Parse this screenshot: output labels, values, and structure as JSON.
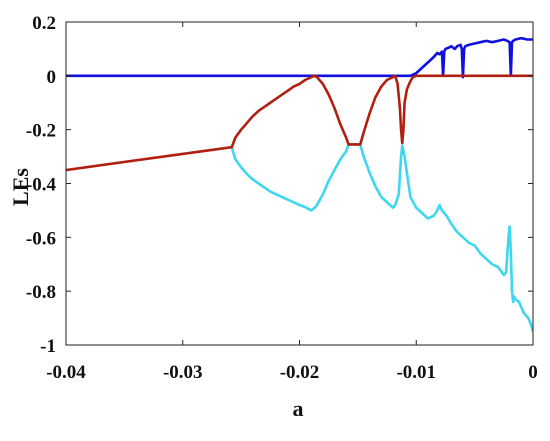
{
  "chart_data": {
    "type": "line",
    "title": "",
    "xlabel": "a",
    "ylabel": "LEs",
    "xlim": [
      -0.04,
      0
    ],
    "ylim": [
      -1,
      0.2
    ],
    "xticks": [
      -0.04,
      -0.03,
      -0.02,
      -0.01,
      0
    ],
    "xtick_labels": [
      "-0.04",
      "-0.03",
      "-0.02",
      "-0.01",
      "0"
    ],
    "yticks": [
      -1,
      -0.8,
      -0.6,
      -0.4,
      -0.2,
      0,
      0.2
    ],
    "ytick_labels": [
      "-1",
      "-0.8",
      "-0.6",
      "-0.4",
      "-0.2",
      "0",
      "0.2"
    ],
    "grid": false,
    "legend": "none",
    "series": [
      {
        "color": "#3fd6f0",
        "x": [
          -0.0258,
          -0.0255,
          -0.025,
          -0.0245,
          -0.024,
          -0.0235,
          -0.023,
          -0.0225,
          -0.022,
          -0.0215,
          -0.021,
          -0.0205,
          -0.02,
          -0.0195,
          -0.019,
          -0.0187,
          -0.0185,
          -0.018,
          -0.0175,
          -0.017,
          -0.0165,
          -0.016,
          -0.0158,
          -0.0155,
          -0.015,
          -0.0148,
          -0.0145,
          -0.014,
          -0.0135,
          -0.013,
          -0.0125,
          -0.012,
          -0.0118,
          -0.0115,
          -0.0113,
          -0.0112,
          -0.011,
          -0.0105,
          -0.01,
          -0.0095,
          -0.009,
          -0.0085,
          -0.0082,
          -0.008,
          -0.0078,
          -0.0076,
          -0.0074,
          -0.007,
          -0.0065,
          -0.006,
          -0.0055,
          -0.005,
          -0.0045,
          -0.004,
          -0.0035,
          -0.003,
          -0.0025,
          -0.0023,
          -0.0021,
          -0.002,
          -0.0019,
          -0.0018,
          -0.0017,
          -0.0016,
          -0.0015,
          -0.0012,
          -0.001,
          -0.0008,
          -0.0006,
          -0.0004,
          -0.0002,
          0
        ],
        "y": [
          -0.265,
          -0.31,
          -0.34,
          -0.365,
          -0.385,
          -0.4,
          -0.415,
          -0.43,
          -0.44,
          -0.45,
          -0.46,
          -0.47,
          -0.48,
          -0.488,
          -0.5,
          -0.49,
          -0.48,
          -0.44,
          -0.39,
          -0.35,
          -0.31,
          -0.28,
          -0.255,
          -0.255,
          -0.255,
          -0.255,
          -0.3,
          -0.36,
          -0.41,
          -0.45,
          -0.47,
          -0.49,
          -0.48,
          -0.44,
          -0.3,
          -0.26,
          -0.3,
          -0.45,
          -0.49,
          -0.51,
          -0.53,
          -0.52,
          -0.5,
          -0.48,
          -0.5,
          -0.51,
          -0.52,
          -0.55,
          -0.58,
          -0.6,
          -0.62,
          -0.63,
          -0.66,
          -0.68,
          -0.7,
          -0.71,
          -0.74,
          -0.73,
          -0.6,
          -0.56,
          -0.65,
          -0.8,
          -0.84,
          -0.82,
          -0.83,
          -0.84,
          -0.86,
          -0.88,
          -0.89,
          -0.9,
          -0.92,
          -0.95
        ]
      },
      {
        "color": "#1010e0",
        "x": [
          -0.04,
          -0.0105,
          -0.01,
          -0.0095,
          -0.009,
          -0.0085,
          -0.0082,
          -0.008,
          -0.0078,
          -0.0077,
          -0.0076,
          -0.0075,
          -0.0072,
          -0.007,
          -0.0067,
          -0.0065,
          -0.0062,
          -0.0061,
          -0.006,
          -0.0059,
          -0.0058,
          -0.0055,
          -0.005,
          -0.0045,
          -0.004,
          -0.0035,
          -0.003,
          -0.0025,
          -0.0022,
          -0.002,
          -0.0019,
          -0.0018,
          -0.0017,
          -0.0015,
          -0.001,
          -0.0005,
          0
        ],
        "y": [
          0,
          0,
          0.01,
          0.03,
          0.05,
          0.07,
          0.085,
          0.08,
          0.09,
          0.0,
          0.09,
          0.1,
          0.105,
          0.11,
          0.1,
          0.11,
          0.115,
          0.1,
          -0.005,
          0.1,
          0.11,
          0.115,
          0.12,
          0.125,
          0.13,
          0.125,
          0.13,
          0.135,
          0.13,
          0.125,
          0.0,
          0.125,
          0.13,
          0.135,
          0.14,
          0.135,
          0.135
        ]
      },
      {
        "color": "#b02010",
        "x": [
          -0.04,
          -0.0258,
          -0.0255,
          -0.025,
          -0.0245,
          -0.024,
          -0.0235,
          -0.023,
          -0.0225,
          -0.022,
          -0.0215,
          -0.021,
          -0.0205,
          -0.02,
          -0.0195,
          -0.019,
          -0.0187,
          -0.0185,
          -0.018,
          -0.0175,
          -0.017,
          -0.0165,
          -0.016,
          -0.0158,
          -0.0155,
          -0.015,
          -0.0148,
          -0.0145,
          -0.014,
          -0.0135,
          -0.013,
          -0.0125,
          -0.012,
          -0.0118,
          -0.0116,
          -0.0114,
          -0.0113,
          -0.0112,
          -0.0111,
          -0.011,
          -0.0108,
          -0.0105,
          -0.0103,
          -0.01,
          -0.009,
          -0.008,
          -0.007,
          -0.006,
          -0.005,
          -0.004,
          -0.003,
          -0.002,
          -0.001,
          0
        ],
        "y": [
          -0.35,
          -0.265,
          -0.23,
          -0.2,
          -0.175,
          -0.15,
          -0.13,
          -0.115,
          -0.1,
          -0.085,
          -0.07,
          -0.055,
          -0.04,
          -0.03,
          -0.015,
          -0.005,
          0,
          -0.005,
          -0.03,
          -0.07,
          -0.12,
          -0.18,
          -0.23,
          -0.255,
          -0.255,
          -0.255,
          -0.255,
          -0.21,
          -0.14,
          -0.08,
          -0.04,
          -0.015,
          -0.005,
          0,
          -0.03,
          -0.12,
          -0.2,
          -0.25,
          -0.2,
          -0.1,
          -0.05,
          -0.02,
          -0.005,
          0,
          0,
          0,
          0,
          0,
          0,
          0,
          0,
          0,
          0,
          0
        ]
      }
    ]
  }
}
